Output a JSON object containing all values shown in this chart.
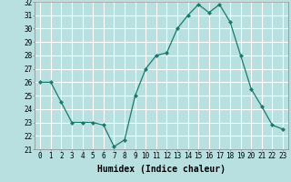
{
  "x": [
    0,
    1,
    2,
    3,
    4,
    5,
    6,
    7,
    8,
    9,
    10,
    11,
    12,
    13,
    14,
    15,
    16,
    17,
    18,
    19,
    20,
    21,
    22,
    23
  ],
  "y": [
    26,
    26,
    24.5,
    23,
    23,
    23,
    22.8,
    21.2,
    21.7,
    25,
    27,
    28,
    28.2,
    30,
    31,
    31.8,
    31.2,
    31.8,
    30.5,
    28,
    25.5,
    24.2,
    22.8,
    22.5
  ],
  "line_color": "#1a7a6e",
  "marker_color": "#1a7a6e",
  "bg_color": "#b8e0e0",
  "grid_color": "#ffffff",
  "xlabel": "Humidex (Indice chaleur)",
  "ylim": [
    21,
    32
  ],
  "xlim": [
    -0.5,
    23.5
  ],
  "yticks": [
    21,
    22,
    23,
    24,
    25,
    26,
    27,
    28,
    29,
    30,
    31,
    32
  ],
  "xticks": [
    0,
    1,
    2,
    3,
    4,
    5,
    6,
    7,
    8,
    9,
    10,
    11,
    12,
    13,
    14,
    15,
    16,
    17,
    18,
    19,
    20,
    21,
    22,
    23
  ],
  "label_fontsize": 7,
  "tick_fontsize": 5.5
}
